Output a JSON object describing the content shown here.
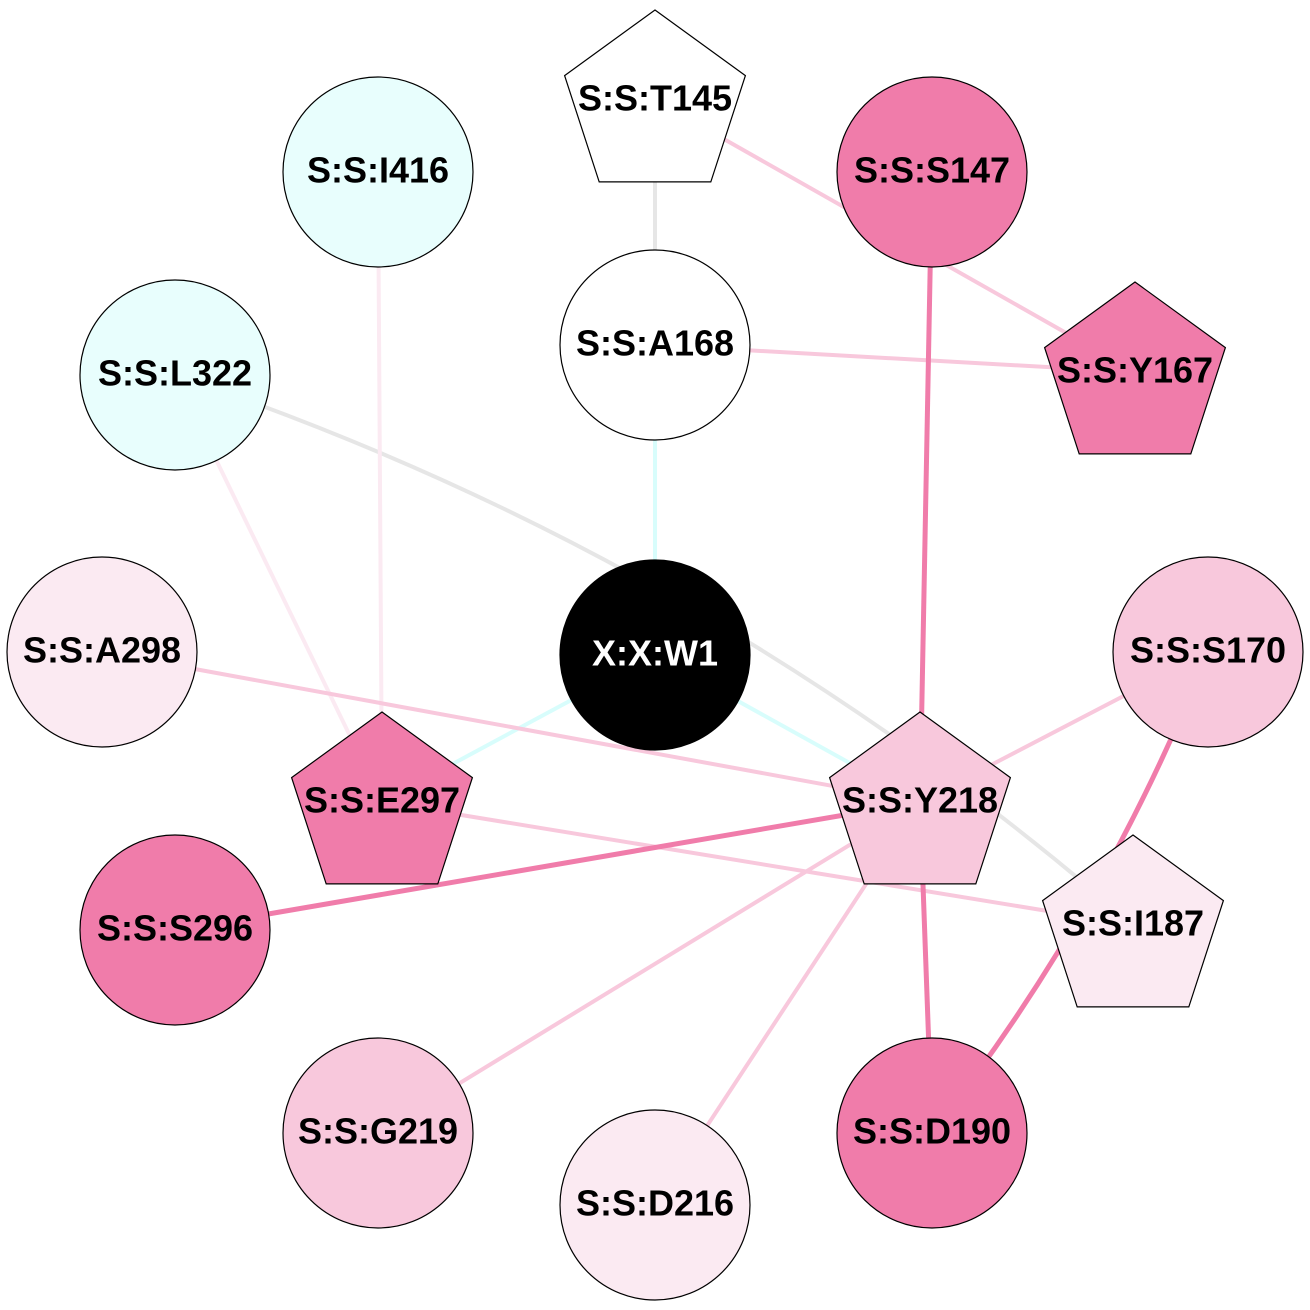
{
  "colors": {
    "strong_pink": "#f07caa",
    "light_pink": "#f8c8dc",
    "pale_pink": "#fbeaf2",
    "pale_cyan": "#e8fefd",
    "white": "#ffffff",
    "black": "#000000",
    "edge_gray": "#e6e6e6",
    "edge_cyan": "#d8fdfc"
  },
  "nodes": [
    {
      "id": "T145",
      "label": "S:S:T145",
      "shape": "pentagon",
      "fill": "#ffffff"
    },
    {
      "id": "I416",
      "label": "S:S:I416",
      "shape": "circle",
      "fill": "#e8fefd"
    },
    {
      "id": "S147",
      "label": "S:S:S147",
      "shape": "circle",
      "fill": "#f07caa"
    },
    {
      "id": "L322",
      "label": "S:S:L322",
      "shape": "circle",
      "fill": "#e8fefd"
    },
    {
      "id": "A168",
      "label": "S:S:A168",
      "shape": "circle",
      "fill": "#ffffff"
    },
    {
      "id": "Y167",
      "label": "S:S:Y167",
      "shape": "pentagon",
      "fill": "#f07caa"
    },
    {
      "id": "A298",
      "label": "S:S:A298",
      "shape": "circle",
      "fill": "#fbeaf2"
    },
    {
      "id": "W1",
      "label": "X:X:W1",
      "shape": "circle",
      "fill": "#000000",
      "text": "#ffffff"
    },
    {
      "id": "S170",
      "label": "S:S:S170",
      "shape": "circle",
      "fill": "#f8c8dc"
    },
    {
      "id": "E297",
      "label": "S:S:E297",
      "shape": "pentagon",
      "fill": "#f07caa"
    },
    {
      "id": "Y218",
      "label": "S:S:Y218",
      "shape": "pentagon",
      "fill": "#f8c8dc"
    },
    {
      "id": "S296",
      "label": "S:S:S296",
      "shape": "circle",
      "fill": "#f07caa"
    },
    {
      "id": "I187",
      "label": "S:S:I187",
      "shape": "pentagon",
      "fill": "#fbeaf2"
    },
    {
      "id": "G219",
      "label": "S:S:G219",
      "shape": "circle",
      "fill": "#f8c8dc"
    },
    {
      "id": "D216",
      "label": "S:S:D216",
      "shape": "circle",
      "fill": "#fbeaf2"
    },
    {
      "id": "D190",
      "label": "S:S:D190",
      "shape": "circle",
      "fill": "#f07caa"
    }
  ],
  "edges": [
    {
      "from": "T145",
      "to": "A168",
      "color": "#e6e6e6",
      "weight": "medium"
    },
    {
      "from": "T145",
      "to": "Y167",
      "color": "#f8c8dc",
      "weight": "medium"
    },
    {
      "from": "A168",
      "to": "Y167",
      "color": "#f8c8dc",
      "weight": "medium"
    },
    {
      "from": "A168",
      "to": "W1",
      "color": "#d8fdfc",
      "weight": "medium"
    },
    {
      "from": "W1",
      "to": "E297",
      "color": "#d8fdfc",
      "weight": "medium"
    },
    {
      "from": "W1",
      "to": "Y218",
      "color": "#d8fdfc",
      "weight": "medium"
    },
    {
      "from": "S147",
      "to": "Y218",
      "color": "#f07caa",
      "weight": "strong"
    },
    {
      "from": "L322",
      "to": "I187",
      "color": "#e6e6e6",
      "weight": "medium",
      "curved": true
    },
    {
      "from": "L322",
      "to": "E297",
      "color": "#fbeaf2",
      "weight": "medium"
    },
    {
      "from": "I416",
      "to": "E297",
      "color": "#fbeaf2",
      "weight": "medium"
    },
    {
      "from": "A298",
      "to": "Y218",
      "color": "#f8c8dc",
      "weight": "medium"
    },
    {
      "from": "S170",
      "to": "Y218",
      "color": "#f8c8dc",
      "weight": "medium"
    },
    {
      "from": "S170",
      "to": "D190",
      "color": "#f07caa",
      "weight": "strong",
      "curved": true
    },
    {
      "from": "E297",
      "to": "I187",
      "color": "#f8c8dc",
      "weight": "medium"
    },
    {
      "from": "S296",
      "to": "Y218",
      "color": "#f07caa",
      "weight": "strong"
    },
    {
      "from": "Y218",
      "to": "G219",
      "color": "#f8c8dc",
      "weight": "medium"
    },
    {
      "from": "Y218",
      "to": "D216",
      "color": "#f8c8dc",
      "weight": "medium"
    },
    {
      "from": "Y218",
      "to": "D190",
      "color": "#f07caa",
      "weight": "strong"
    }
  ]
}
